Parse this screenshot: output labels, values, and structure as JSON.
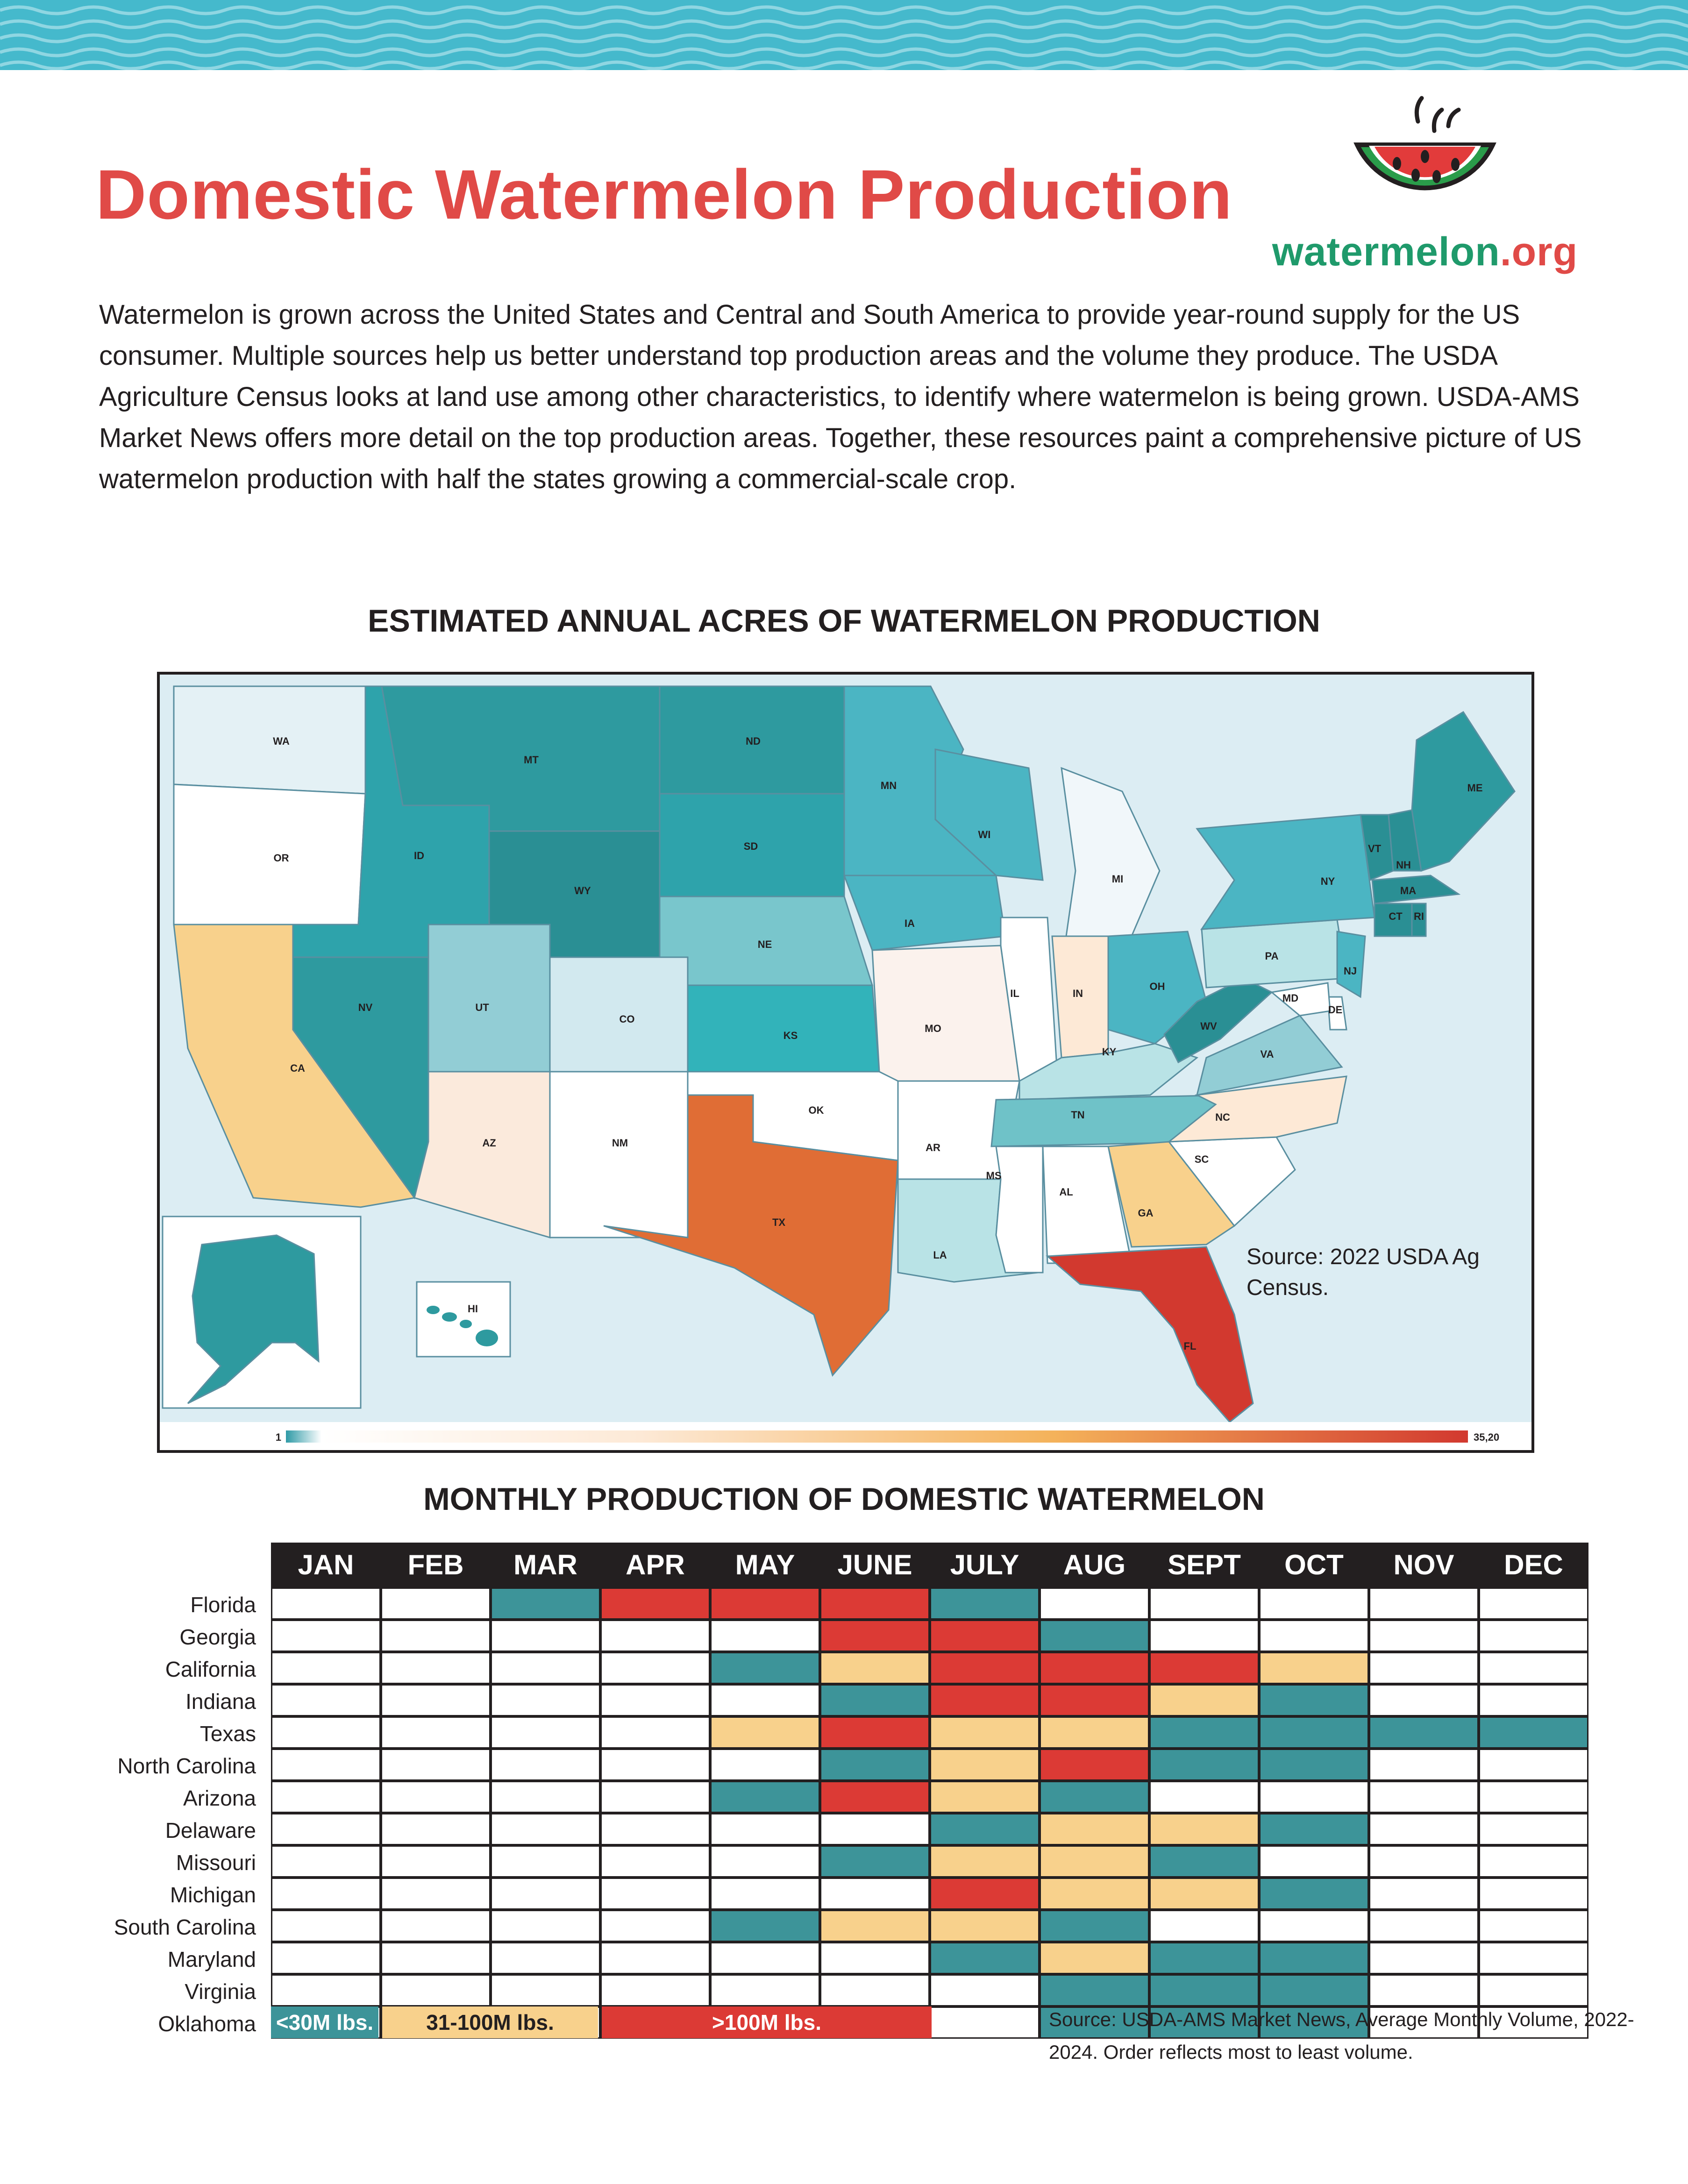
{
  "title": "Domestic Watermelon Production",
  "logo": {
    "text_main": "watermelon",
    "text_ext": ".org"
  },
  "intro": "Watermelon is grown across the United States and Central and South America to provide year-round supply for the US consumer. Multiple sources help us better understand top production areas and the volume they produce. The USDA Agriculture Census looks at land use among other characteristics, to identify where watermelon is being grown. USDA-AMS Market News offers more detail on the top production areas. Together, these resources paint a comprehensive picture of US watermelon production with half the states growing a commercial-scale crop.",
  "map": {
    "title": "ESTIMATED ANNUAL ACRES OF WATERMELON PRODUCTION",
    "source": "Source: 2022 USDA Ag Census.",
    "scale_min": "1",
    "scale_max": "35,20",
    "colors": {
      "teal": "#2e9a9f",
      "light": "#f3f8fb",
      "orange": "#e06d35",
      "red": "#d2392f"
    },
    "states": [
      "WA",
      "OR",
      "CA",
      "MT",
      "ID",
      "NV",
      "WY",
      "UT",
      "AZ",
      "CO",
      "NM",
      "ND",
      "SD",
      "NE",
      "KS",
      "OK",
      "TX",
      "MN",
      "IA",
      "MO",
      "AR",
      "LA",
      "WI",
      "IL",
      "MI",
      "IN",
      "OH",
      "KY",
      "TN",
      "MS",
      "AL",
      "GA",
      "FL",
      "SC",
      "NC",
      "VA",
      "WV",
      "PA",
      "NY",
      "ME",
      "VT",
      "NH",
      "MA",
      "CT",
      "RI",
      "NJ",
      "DE",
      "MD",
      "HI"
    ]
  },
  "chart": {
    "title": "MONTHLY PRODUCTION OF DOMESTIC WATERMELON",
    "months": [
      "JAN",
      "FEB",
      "MAR",
      "APR",
      "MAY",
      "JUNE",
      "JULY",
      "AUG",
      "SEPT",
      "OCT",
      "NOV",
      "DEC"
    ],
    "colors": {
      "L": "#3d9499",
      "M": "#f8d18c",
      "H": "#dc3a35",
      "N": "#ffffff"
    },
    "rows": [
      {
        "state": "Florida",
        "cells": [
          "N",
          "N",
          "L",
          "H",
          "H",
          "H",
          "L",
          "N",
          "N",
          "N",
          "N",
          "N"
        ]
      },
      {
        "state": "Georgia",
        "cells": [
          "N",
          "N",
          "N",
          "N",
          "N",
          "H",
          "H",
          "L",
          "N",
          "N",
          "N",
          "N"
        ]
      },
      {
        "state": "California",
        "cells": [
          "N",
          "N",
          "N",
          "N",
          "L",
          "M",
          "H",
          "H",
          "H",
          "M",
          "N",
          "N"
        ]
      },
      {
        "state": "Indiana",
        "cells": [
          "N",
          "N",
          "N",
          "N",
          "N",
          "L",
          "H",
          "H",
          "M",
          "L",
          "N",
          "N"
        ]
      },
      {
        "state": "Texas",
        "cells": [
          "N",
          "N",
          "N",
          "N",
          "M",
          "H",
          "M",
          "M",
          "L",
          "L",
          "L",
          "L"
        ]
      },
      {
        "state": "North Carolina",
        "cells": [
          "N",
          "N",
          "N",
          "N",
          "N",
          "L",
          "M",
          "H",
          "L",
          "L",
          "N",
          "N"
        ]
      },
      {
        "state": "Arizona",
        "cells": [
          "N",
          "N",
          "N",
          "N",
          "L",
          "H",
          "M",
          "L",
          "N",
          "N",
          "N",
          "N"
        ]
      },
      {
        "state": "Delaware",
        "cells": [
          "N",
          "N",
          "N",
          "N",
          "N",
          "N",
          "L",
          "M",
          "M",
          "L",
          "N",
          "N"
        ]
      },
      {
        "state": "Missouri",
        "cells": [
          "N",
          "N",
          "N",
          "N",
          "N",
          "L",
          "M",
          "M",
          "L",
          "N",
          "N",
          "N"
        ]
      },
      {
        "state": "Michigan",
        "cells": [
          "N",
          "N",
          "N",
          "N",
          "N",
          "N",
          "H",
          "M",
          "M",
          "L",
          "N",
          "N"
        ]
      },
      {
        "state": "South Carolina",
        "cells": [
          "N",
          "N",
          "N",
          "N",
          "L",
          "M",
          "M",
          "L",
          "N",
          "N",
          "N",
          "N"
        ]
      },
      {
        "state": "Maryland",
        "cells": [
          "N",
          "N",
          "N",
          "N",
          "N",
          "N",
          "L",
          "M",
          "L",
          "L",
          "N",
          "N"
        ]
      },
      {
        "state": "Virginia",
        "cells": [
          "N",
          "N",
          "N",
          "N",
          "N",
          "N",
          "N",
          "L",
          "L",
          "L",
          "N",
          "N"
        ]
      },
      {
        "state": "Oklahoma",
        "cells": [
          "N",
          "N",
          "N",
          "N",
          "N",
          "N",
          "N",
          "L",
          "L",
          "L",
          "N",
          "N"
        ]
      }
    ],
    "legend": [
      {
        "key": "L",
        "label": "<30M lbs."
      },
      {
        "key": "M",
        "label": "31-100M lbs."
      },
      {
        "key": "H",
        "label": ">100M lbs."
      }
    ],
    "source": "Source: USDA-AMS Market News, Average Monthly Volume, 2022-2024. Order reflects most to least volume."
  }
}
